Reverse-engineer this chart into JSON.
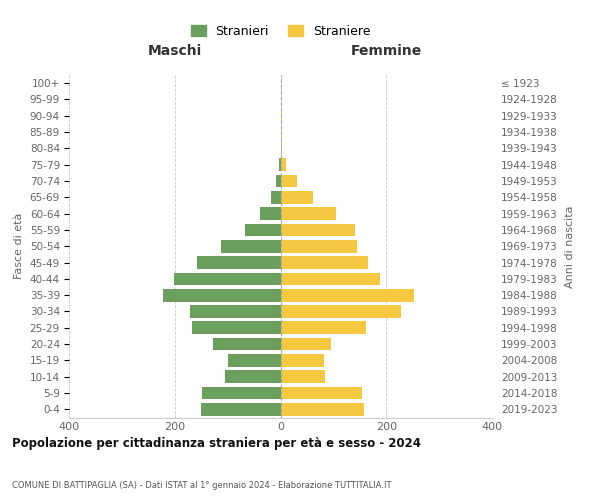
{
  "age_groups": [
    "0-4",
    "5-9",
    "10-14",
    "15-19",
    "20-24",
    "25-29",
    "30-34",
    "35-39",
    "40-44",
    "45-49",
    "50-54",
    "55-59",
    "60-64",
    "65-69",
    "70-74",
    "75-79",
    "80-84",
    "85-89",
    "90-94",
    "95-99",
    "100+"
  ],
  "birth_years": [
    "2019-2023",
    "2014-2018",
    "2009-2013",
    "2004-2008",
    "1999-2003",
    "1994-1998",
    "1989-1993",
    "1984-1988",
    "1979-1983",
    "1974-1978",
    "1969-1973",
    "1964-1968",
    "1959-1963",
    "1954-1958",
    "1949-1953",
    "1944-1948",
    "1939-1943",
    "1934-1938",
    "1929-1933",
    "1924-1928",
    "≤ 1923"
  ],
  "maschi": [
    150,
    148,
    105,
    100,
    128,
    168,
    172,
    222,
    202,
    158,
    112,
    68,
    38,
    18,
    8,
    2,
    0,
    0,
    0,
    0,
    0
  ],
  "femmine": [
    158,
    155,
    85,
    82,
    95,
    162,
    228,
    252,
    188,
    165,
    145,
    140,
    105,
    62,
    32,
    10,
    3,
    2,
    2,
    1,
    1
  ],
  "color_maschi": "#6a9f5e",
  "color_femmine": "#f5c842",
  "title": "Popolazione per cittadinanza straniera per età e sesso - 2024",
  "subtitle": "COMUNE DI BATTIPAGLIA (SA) - Dati ISTAT al 1° gennaio 2024 - Elaborazione TUTTITALIA.IT",
  "header_left": "Maschi",
  "header_right": "Femmine",
  "ylabel_left": "Fasce di età",
  "ylabel_right": "Anni di nascita",
  "legend_maschi": "Stranieri",
  "legend_femmine": "Straniere",
  "xlim": 400,
  "background_color": "#ffffff",
  "grid_color": "#cccccc"
}
